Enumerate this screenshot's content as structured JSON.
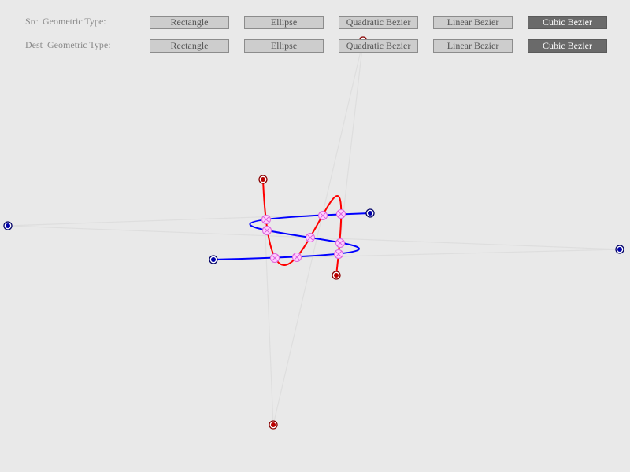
{
  "toolbar": {
    "src_label": "Src  Geometric Type:",
    "dest_label": "Dest  Geometric Type:",
    "types": [
      "Rectangle",
      "Ellipse",
      "Quadratic Bezier",
      "Linear Bezier",
      "Cubic Bezier"
    ],
    "src_selected": "Cubic Bezier",
    "dest_selected": "Cubic Bezier"
  },
  "colors": {
    "background": "#e9e9e9",
    "src_curve": "#ff0000",
    "dest_curve": "#0000ff",
    "control_lines": "#dedede",
    "src_handles": "#aa0000",
    "dest_handles": "#000099",
    "intersections": "#ee77ee"
  },
  "icons": {
    "control_point": "filled-dot-in-ring",
    "intersection_marker": "circle-with-x"
  }
}
